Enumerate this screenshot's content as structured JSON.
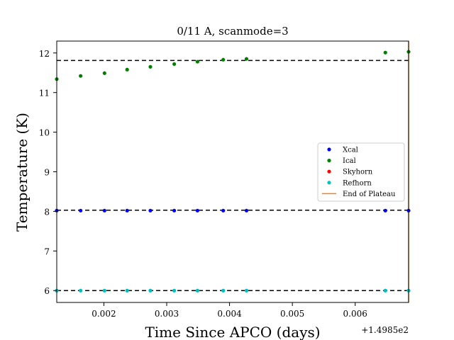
{
  "chart_data": {
    "type": "scatter",
    "title": "0/11 A, scanmode=3",
    "xlabel": "Time Since APCO (days)",
    "ylabel": "Temperature (K)",
    "x_offset_label": "+1.4985e2",
    "xlim": [
      0.00125,
      0.00685
    ],
    "ylim": [
      5.7,
      12.3
    ],
    "x_ticks": [
      0.002,
      0.003,
      0.004,
      0.005,
      0.006
    ],
    "x_tick_labels": [
      "0.002",
      "0.003",
      "0.004",
      "0.005",
      "0.006"
    ],
    "y_ticks": [
      6,
      7,
      8,
      9,
      10,
      11,
      12
    ],
    "y_tick_labels": [
      "6",
      "7",
      "8",
      "9",
      "10",
      "11",
      "12"
    ],
    "legend_position": "center-right",
    "legend": [
      {
        "label": "Xcal",
        "color": "#0000ff",
        "kind": "marker"
      },
      {
        "label": "Ical",
        "color": "#008000",
        "kind": "marker"
      },
      {
        "label": "Skyhorn",
        "color": "#ff0000",
        "kind": "marker"
      },
      {
        "label": "Refhorn",
        "color": "#00bfbf",
        "kind": "marker"
      },
      {
        "label": "End of Plateau",
        "color": "#ff7f0e",
        "kind": "line"
      }
    ],
    "series": [
      {
        "name": "Xcal",
        "color": "#0000ff",
        "x": [
          0.00125,
          0.00163,
          0.00201,
          0.00237,
          0.00274,
          0.00312,
          0.00349,
          0.0039,
          0.00427,
          0.00648,
          0.00685
        ],
        "y": [
          8.02,
          8.02,
          8.02,
          8.02,
          8.02,
          8.02,
          8.02,
          8.02,
          8.02,
          8.02,
          8.02
        ]
      },
      {
        "name": "Ical",
        "color": "#008000",
        "x": [
          0.00125,
          0.00163,
          0.00201,
          0.00237,
          0.00274,
          0.00312,
          0.00349,
          0.0039,
          0.00427,
          0.00648,
          0.00685
        ],
        "y": [
          11.34,
          11.42,
          11.49,
          11.58,
          11.65,
          11.72,
          11.78,
          11.83,
          11.85,
          12.01,
          12.03
        ]
      },
      {
        "name": "Skyhorn",
        "color": "#ff0000",
        "x": [],
        "y": []
      },
      {
        "name": "Refhorn",
        "color": "#00bfbf",
        "x": [
          0.00125,
          0.00163,
          0.00201,
          0.00237,
          0.00274,
          0.00312,
          0.00349,
          0.0039,
          0.00427,
          0.00648,
          0.00685
        ],
        "y": [
          6.0,
          6.0,
          6.0,
          6.0,
          6.0,
          6.0,
          6.0,
          6.0,
          6.0,
          6.0,
          6.0
        ]
      }
    ],
    "reference_lines": [
      {
        "orientation": "horizontal",
        "y": 11.81,
        "style": "dashed",
        "color": "#000000"
      },
      {
        "orientation": "horizontal",
        "y": 8.03,
        "style": "dashed",
        "color": "#000000"
      },
      {
        "orientation": "horizontal",
        "y": 6.0,
        "style": "dashed",
        "color": "#000000"
      },
      {
        "orientation": "vertical",
        "x": 0.00685,
        "style": "solid",
        "color": "#ff7f0e"
      }
    ]
  }
}
